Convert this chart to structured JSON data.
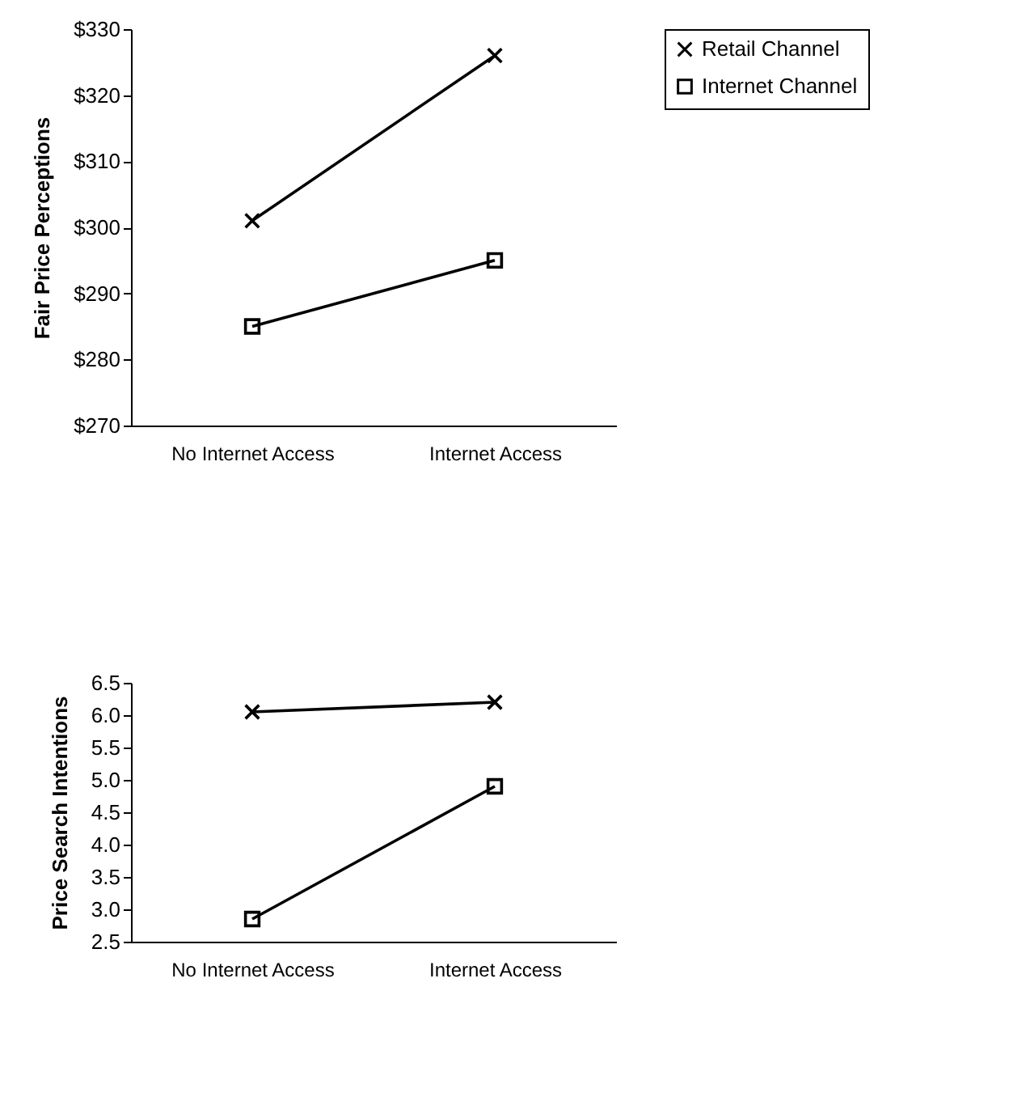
{
  "chart_data": [
    {
      "type": "line",
      "ylabel": "Fair Price Perceptions",
      "categories": [
        "No Internet Access",
        "Internet Access"
      ],
      "ylim": [
        270,
        330
      ],
      "yticks": [
        {
          "value": 270,
          "label": "$270"
        },
        {
          "value": 280,
          "label": "$280"
        },
        {
          "value": 290,
          "label": "$290"
        },
        {
          "value": 300,
          "label": "$300"
        },
        {
          "value": 310,
          "label": "$310"
        },
        {
          "value": 320,
          "label": "$320"
        },
        {
          "value": 330,
          "label": "$330"
        }
      ],
      "grid": false,
      "legend": "right",
      "series": [
        {
          "name": "Retail Channel",
          "color": "#000000",
          "marker": "cross",
          "values": [
            301,
            326
          ]
        },
        {
          "name": "Internet Channel",
          "color": "#000000",
          "marker": "square",
          "values": [
            285,
            295
          ]
        }
      ]
    },
    {
      "type": "line",
      "ylabel": "Price Search Intentions",
      "categories": [
        "No Internet Access",
        "Internet Access"
      ],
      "ylim": [
        2.5,
        6.5
      ],
      "yticks": [
        {
          "value": 2.5,
          "label": "2.5"
        },
        {
          "value": 3,
          "label": "3.0"
        },
        {
          "value": 3.5,
          "label": "3.5"
        },
        {
          "value": 4,
          "label": "4.0"
        },
        {
          "value": 4.5,
          "label": "4.5"
        },
        {
          "value": 5,
          "label": "5.0"
        },
        {
          "value": 5.5,
          "label": "5.5"
        },
        {
          "value": 6,
          "label": "6.0"
        },
        {
          "value": 6.5,
          "label": "6.5"
        }
      ],
      "grid": false,
      "legend": "right",
      "series": [
        {
          "name": "Retail Channel",
          "color": "#000000",
          "marker": "cross",
          "values": [
            6.05,
            6.2
          ]
        },
        {
          "name": "Internet Channel",
          "color": "#000000",
          "marker": "square",
          "values": [
            2.85,
            4.9
          ]
        }
      ]
    }
  ]
}
